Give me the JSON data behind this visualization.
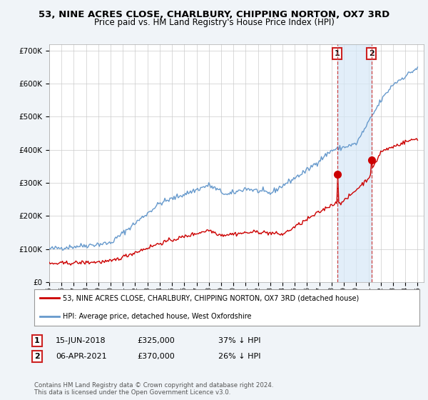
{
  "title": "53, NINE ACRES CLOSE, CHARLBURY, CHIPPING NORTON, OX7 3RD",
  "subtitle": "Price paid vs. HM Land Registry's House Price Index (HPI)",
  "ylim": [
    0,
    720000
  ],
  "yticks": [
    0,
    100000,
    200000,
    300000,
    400000,
    500000,
    600000,
    700000
  ],
  "ytick_labels": [
    "£0",
    "£100K",
    "£200K",
    "£300K",
    "£400K",
    "£500K",
    "£600K",
    "£700K"
  ],
  "hpi_color": "#6699cc",
  "price_color": "#cc0000",
  "transaction1_year": 2018.46,
  "transaction1_price_val": 325000,
  "transaction2_year": 2021.25,
  "transaction2_price_val": 370000,
  "transaction1": "15-JUN-2018",
  "transaction1_price": "£325,000",
  "transaction1_hpi": "37% ↓ HPI",
  "transaction2": "06-APR-2021",
  "transaction2_price": "£370,000",
  "transaction2_hpi": "26% ↓ HPI",
  "legend1": "53, NINE ACRES CLOSE, CHARLBURY, CHIPPING NORTON, OX7 3RD (detached house)",
  "legend2": "HPI: Average price, detached house, West Oxfordshire",
  "footer": "Contains HM Land Registry data © Crown copyright and database right 2024.\nThis data is licensed under the Open Government Licence v3.0.",
  "background_color": "#f0f4f8",
  "plot_bg_color": "#ffffff",
  "title_fontsize": 9.5,
  "subtitle_fontsize": 8.5,
  "tick_fontsize": 7.5
}
